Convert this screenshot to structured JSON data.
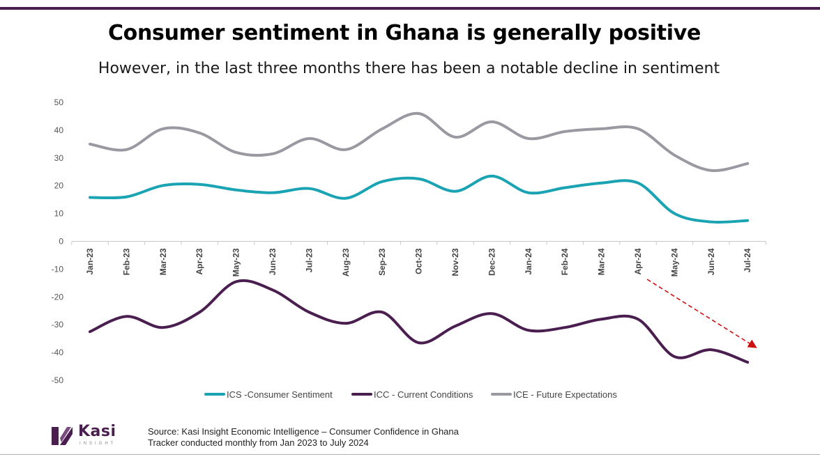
{
  "title": "Consumer sentiment in Ghana is generally positive",
  "subtitle": "However, in the last three months there has been a notable decline in sentiment",
  "chart_data": {
    "type": "line",
    "categories": [
      "Jan-23",
      "Feb-23",
      "Mar-23",
      "Apr-23",
      "May-23",
      "Jun-23",
      "Jul-23",
      "Aug-23",
      "Sep-23",
      "Oct-23",
      "Nov-23",
      "Dec-23",
      "Jan-24",
      "Feb-24",
      "Mar-24",
      "Apr-24",
      "May-24",
      "Jun-24",
      "Jul-24"
    ],
    "ylim": [
      -50,
      50
    ],
    "yticks": [
      50,
      40,
      30,
      20,
      10,
      0,
      -10,
      -20,
      -30,
      -40,
      -50
    ],
    "series": [
      {
        "name": "ICS -Consumer Sentiment",
        "color": "#1aa3b3",
        "values": [
          15.8,
          16.0,
          20.1,
          20.5,
          18.5,
          17.5,
          19.0,
          15.5,
          21.5,
          22.5,
          18.0,
          23.5,
          17.5,
          19.3,
          21.0,
          21.0,
          10.0,
          7.0,
          7.5
        ]
      },
      {
        "name": "ICC - Current Conditions",
        "color": "#4a1f4f",
        "values": [
          -32.5,
          -27.0,
          -31.0,
          -25.5,
          -14.5,
          -17.5,
          -25.5,
          -29.5,
          -25.5,
          -36.5,
          -30.5,
          -26.0,
          -32.0,
          -31.0,
          -28.0,
          -28.0,
          -41.5,
          -39.0,
          -43.5
        ]
      },
      {
        "name": "ICE - Future Expectations",
        "color": "#9a98a0",
        "values": [
          35.0,
          33.0,
          40.5,
          39.0,
          32.0,
          31.5,
          37.0,
          33.0,
          40.5,
          46.0,
          37.5,
          43.0,
          37.0,
          39.5,
          40.5,
          40.5,
          31.0,
          25.5,
          28.0
        ]
      }
    ]
  },
  "source": {
    "line1": "Source: Kasi Insight Economic Intelligence – Consumer Confidence in Ghana",
    "line2": "Tracker conducted monthly from Jan 2023 to July 2024"
  },
  "logo": {
    "name": "Kasi",
    "tagline": "INSIGHT"
  }
}
